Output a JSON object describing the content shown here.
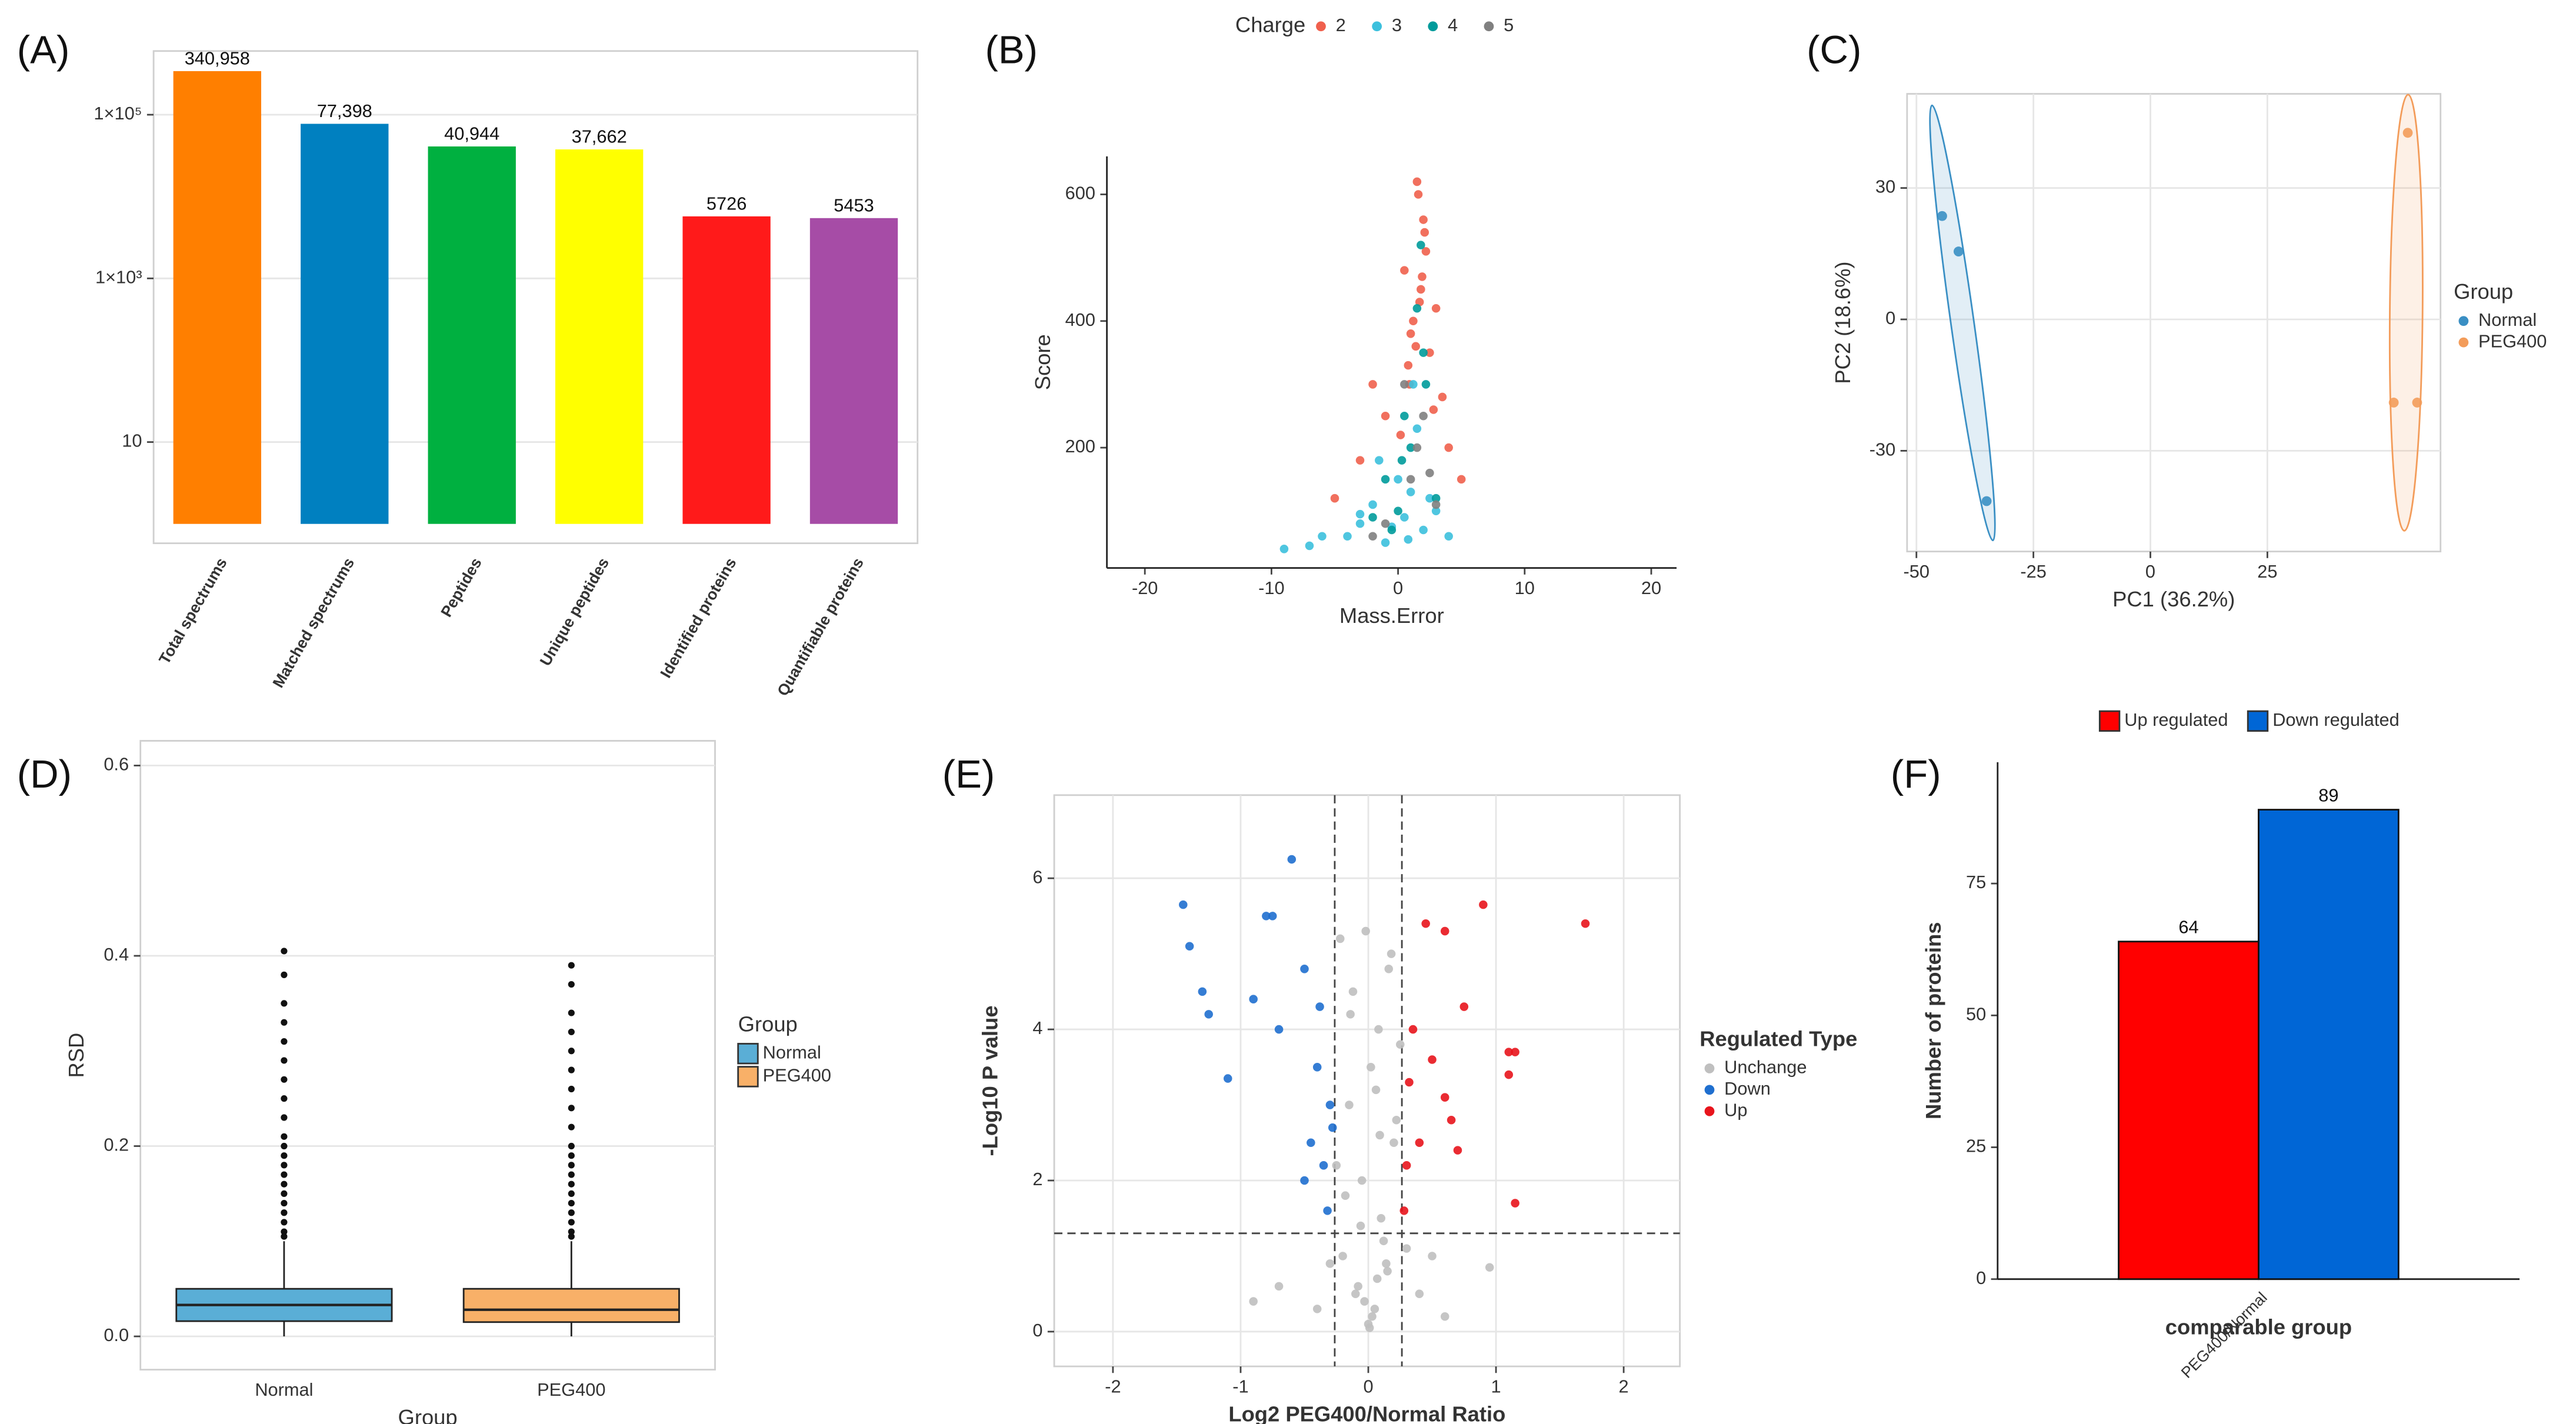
{
  "chart_data": [
    {
      "type": "bar",
      "label": "(A)",
      "log_y": true,
      "grid": true,
      "categories": [
        "Total spectrums",
        "Matched spectrums",
        "Peptides",
        "Unique peptides",
        "Identified proteins",
        "Quantifiable proteins"
      ],
      "values": [
        340958,
        77398,
        40944,
        37662,
        5726,
        5453
      ],
      "value_labels": [
        "340,958",
        "77,398",
        "40,944",
        "37,662",
        "5726",
        "5453"
      ],
      "colors": [
        "#ff7f00",
        "#0080c0",
        "#00b040",
        "#ffff00",
        "#ff1a1a",
        "#a64ca6"
      ],
      "ylim": [
        0.58,
        600000
      ],
      "yticks": [
        10,
        {
          "value": 1000,
          "label": "1×10³"
        },
        {
          "value": 100000,
          "label": "1×10⁵"
        }
      ]
    },
    {
      "type": "scatter",
      "label": "(B)",
      "grid": false,
      "xlabel": "Mass.Error",
      "ylabel": "Score",
      "legend_title": "Charge",
      "xlim": [
        -23,
        22
      ],
      "xticks": [
        -20,
        -10,
        0,
        10,
        20
      ],
      "ylim": [
        10,
        660
      ],
      "yticks": [
        200,
        400,
        600
      ],
      "series": [
        {
          "name": "2",
          "color": "#f0604d",
          "x": [
            1.5,
            2,
            0.5,
            3,
            -2,
            1,
            2.5,
            1.8,
            -1,
            4,
            0.8,
            2.2,
            1.2,
            -3,
            3.5,
            1.6,
            0.2,
            2.8,
            1.9,
            5,
            -5,
            1.4,
            2.1,
            0.9,
            1.7
          ],
          "y": [
            620,
            560,
            480,
            420,
            300,
            380,
            350,
            450,
            250,
            200,
            330,
            510,
            400,
            180,
            280,
            600,
            220,
            260,
            470,
            150,
            120,
            360,
            540,
            300,
            430
          ]
        },
        {
          "name": "3",
          "color": "#3cc0dd",
          "x": [
            -9,
            -6,
            -3,
            -1,
            0.5,
            1,
            2,
            -2,
            -4,
            3,
            0,
            1.5,
            -0.5,
            -7,
            4,
            -1.5,
            0.8,
            2.5,
            -3,
            1.2
          ],
          "y": [
            40,
            60,
            80,
            50,
            90,
            130,
            70,
            110,
            60,
            100,
            150,
            230,
            75,
            45,
            60,
            180,
            55,
            120,
            95,
            300
          ]
        },
        {
          "name": "4",
          "color": "#009b9b",
          "x": [
            0,
            1,
            2,
            -1,
            1.5,
            0.5,
            3,
            -2,
            2.2,
            1.8,
            0.3,
            -0.5
          ],
          "y": [
            100,
            200,
            350,
            150,
            420,
            250,
            120,
            90,
            300,
            520,
            180,
            70
          ]
        },
        {
          "name": "5",
          "color": "#808080",
          "x": [
            1,
            2,
            -1,
            0.5,
            3,
            1.5,
            2.5,
            -2
          ],
          "y": [
            150,
            250,
            80,
            300,
            110,
            200,
            160,
            60
          ]
        }
      ]
    },
    {
      "type": "scatter",
      "label": "(C)",
      "grid": true,
      "ellipse": true,
      "xlabel": "PC1 (36.2%)",
      "ylabel": "PC2 (18.6%)",
      "legend_title": "Group",
      "xlim": [
        -52,
        62
      ],
      "xticks": [
        -50,
        -25,
        0,
        25
      ],
      "ylim": [
        -53,
        51.5
      ],
      "yticks": [
        -30,
        0,
        30
      ],
      "series": [
        {
          "name": "Normal",
          "color": "#3a8fc4",
          "x": [
            -44.5,
            -41,
            -35
          ],
          "y": [
            23.6,
            15.5,
            -41.5
          ]
        },
        {
          "name": "PEG400",
          "color": "#f39c5a",
          "x": [
            55,
            52,
            57
          ],
          "y": [
            42.6,
            -19,
            -19
          ]
        }
      ]
    },
    {
      "type": "box",
      "label": "(D)",
      "grid": true,
      "xlabel": "Group",
      "ylabel": "RSD",
      "legend_title": "Group",
      "categories": [
        "Normal",
        "PEG400"
      ],
      "ylim": [
        -0.035,
        0.626
      ],
      "yticks": [
        {
          "value": 0,
          "label": "0.0"
        },
        0.2,
        0.4,
        0.6
      ],
      "series": [
        {
          "name": "Normal",
          "color": "#5aaed6",
          "whisker_low": 0,
          "q1": 0.016,
          "median": 0.033,
          "q3": 0.05,
          "whisker_high": 0.1,
          "outliers": [
            0.105,
            0.11,
            0.12,
            0.13,
            0.14,
            0.15,
            0.16,
            0.17,
            0.18,
            0.19,
            0.2,
            0.21,
            0.23,
            0.25,
            0.27,
            0.29,
            0.31,
            0.33,
            0.35,
            0.38,
            0.405
          ]
        },
        {
          "name": "PEG400",
          "color": "#f8b068",
          "whisker_low": 0,
          "q1": 0.015,
          "median": 0.028,
          "q3": 0.05,
          "whisker_high": 0.1,
          "outliers": [
            0.105,
            0.11,
            0.12,
            0.13,
            0.14,
            0.15,
            0.16,
            0.17,
            0.18,
            0.19,
            0.2,
            0.22,
            0.24,
            0.26,
            0.28,
            0.3,
            0.32,
            0.34,
            0.37,
            0.39
          ]
        }
      ]
    },
    {
      "type": "scatter",
      "label": "(E)",
      "grid": true,
      "xlabel": "Log2 PEG400/Normal Ratio",
      "ylabel": "-Log10 P value",
      "legend_title": "Regulated Type",
      "xlim": [
        -2.46,
        2.44
      ],
      "xticks": [
        -2,
        -1,
        0,
        1,
        2
      ],
      "ylim": [
        -0.46,
        7.1
      ],
      "yticks": [
        0,
        2,
        4,
        6
      ],
      "thresholds_x": [
        -0.263,
        0.263
      ],
      "threshold_y": 1.301,
      "series": [
        {
          "name": "Unchange",
          "color": "#bfbfbf",
          "x": [
            0,
            0.05,
            -0.1,
            0.15,
            -0.2,
            0.1,
            -0.05,
            0.2,
            -0.15,
            0.02,
            0.08,
            -0.12,
            0.18,
            -0.22,
            0.12,
            -0.08,
            0.03,
            -0.18,
            0.22,
            0.06,
            -0.03,
            0.14,
            -0.25,
            0.25,
            0.01,
            -0.06,
            0.09,
            -0.14,
            0.4,
            -0.4,
            0.6,
            -0.7,
            0.95,
            0.3,
            -0.3,
            0.5,
            -0.9,
            0.16,
            -0.02,
            0.07
          ],
          "y": [
            0.1,
            0.3,
            0.5,
            0.8,
            1.0,
            1.5,
            2.0,
            2.5,
            3.0,
            3.5,
            4.0,
            4.5,
            5.0,
            5.2,
            1.2,
            0.6,
            0.2,
            1.8,
            2.8,
            3.2,
            0.4,
            0.9,
            2.2,
            3.8,
            0.05,
            1.4,
            2.6,
            4.2,
            0.5,
            0.3,
            0.2,
            0.6,
            0.85,
            1.1,
            0.9,
            1.0,
            0.4,
            4.8,
            5.3,
            0.7
          ]
        },
        {
          "name": "Down",
          "color": "#1f6fcf",
          "x": [
            -1.45,
            -1.4,
            -1.3,
            -1.25,
            -1.1,
            -0.9,
            -0.8,
            -0.75,
            -0.6,
            -0.7,
            -0.5,
            -0.4,
            -0.45,
            -0.35,
            -0.5,
            -0.3,
            -0.32,
            -0.38,
            -0.28
          ],
          "y": [
            5.65,
            5.1,
            4.5,
            4.2,
            3.35,
            4.4,
            5.5,
            5.5,
            6.25,
            4.0,
            4.8,
            3.5,
            2.5,
            2.2,
            2.0,
            3.0,
            1.6,
            4.3,
            2.7
          ]
        },
        {
          "name": "Up",
          "color": "#e8141c",
          "x": [
            0.9,
            1.7,
            0.6,
            0.45,
            0.75,
            1.1,
            1.15,
            1.1,
            0.35,
            0.5,
            0.6,
            0.65,
            0.4,
            0.3,
            1.15,
            0.7,
            0.28,
            0.32
          ],
          "y": [
            5.65,
            5.4,
            5.3,
            5.4,
            4.3,
            3.7,
            3.7,
            3.4,
            4.0,
            3.6,
            3.1,
            2.8,
            2.5,
            2.2,
            1.7,
            2.4,
            1.6,
            3.3
          ]
        }
      ]
    },
    {
      "type": "bar",
      "label": "(F)",
      "grid": false,
      "xlabel": "comparable group",
      "ylabel": "Number of proteins",
      "categories": [
        "PEG400/Normal"
      ],
      "ylim": [
        0,
        98
      ],
      "yticks": [
        0,
        25,
        50,
        75
      ],
      "series": [
        {
          "name": "Up regulated",
          "color": "#ff0000",
          "values": [
            64
          ]
        },
        {
          "name": "Down regulated",
          "color": "#0066d6",
          "values": [
            89
          ]
        }
      ]
    }
  ]
}
